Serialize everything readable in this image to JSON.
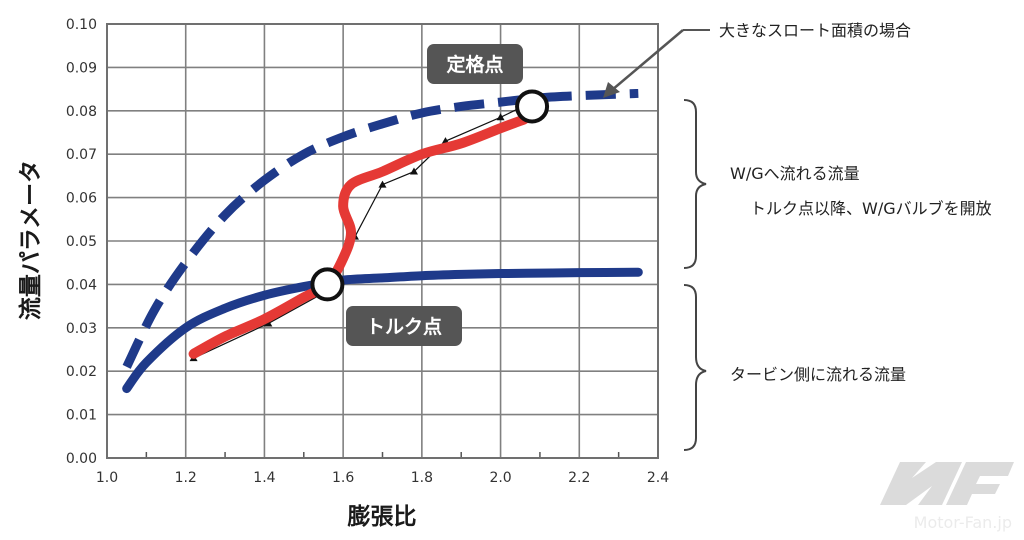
{
  "chart_data": {
    "type": "line",
    "xlabel": "膨張比",
    "ylabel": "流量パラメータ",
    "xlim": [
      1.0,
      2.4
    ],
    "ylim": [
      0.0,
      0.1
    ],
    "x_ticks": [
      "1.0",
      "1.2",
      "1.4",
      "1.6",
      "1.8",
      "2.0",
      "2.2",
      "2.4"
    ],
    "y_ticks": [
      "0.00",
      "0.01",
      "0.02",
      "0.03",
      "0.04",
      "0.05",
      "0.06",
      "0.07",
      "0.08",
      "0.09",
      "0.10"
    ],
    "grid": true,
    "series": [
      {
        "style": "dashed",
        "color": "#1f3a8a",
        "x": [
          1.05,
          1.12,
          1.2,
          1.3,
          1.4,
          1.5,
          1.6,
          1.7,
          1.8,
          1.9,
          2.0,
          2.1,
          2.2,
          2.35
        ],
        "y": [
          0.021,
          0.034,
          0.045,
          0.056,
          0.064,
          0.07,
          0.074,
          0.077,
          0.0795,
          0.081,
          0.082,
          0.083,
          0.0835,
          0.084
        ]
      },
      {
        "style": "solid",
        "color": "#1f3a8a",
        "x": [
          1.05,
          1.1,
          1.2,
          1.3,
          1.4,
          1.5,
          1.6,
          1.7,
          1.8,
          1.9,
          2.0,
          2.1,
          2.2,
          2.35
        ],
        "y": [
          0.016,
          0.022,
          0.03,
          0.0345,
          0.0375,
          0.0395,
          0.041,
          0.0415,
          0.042,
          0.0423,
          0.0425,
          0.0426,
          0.0427,
          0.0428
        ]
      },
      {
        "style": "solid",
        "color": "#e53935",
        "x": [
          1.22,
          1.3,
          1.4,
          1.5,
          1.56,
          1.6,
          1.62,
          1.6,
          1.62,
          1.7,
          1.8,
          1.9,
          2.0,
          2.06
        ],
        "y": [
          0.024,
          0.028,
          0.032,
          0.037,
          0.04,
          0.046,
          0.052,
          0.058,
          0.063,
          0.066,
          0.07,
          0.0725,
          0.076,
          0.078
        ]
      },
      {
        "style": "solid-markers",
        "color": "#111111",
        "x": [
          1.22,
          1.41,
          1.55,
          1.63,
          1.7,
          1.78,
          1.86,
          2.0,
          2.08
        ],
        "y": [
          0.023,
          0.031,
          0.038,
          0.051,
          0.063,
          0.066,
          0.073,
          0.0785,
          0.082
        ]
      }
    ],
    "points": {
      "rated": {
        "x": 2.08,
        "y": 0.081,
        "label": "定格点"
      },
      "torque": {
        "x": 1.56,
        "y": 0.04,
        "label": "トルク点"
      }
    },
    "annotations": {
      "large_throat": "大きなスロート面積の場合",
      "wg_flow": "W/Gへ流れる流量",
      "wg_open": "トルク点以降、W/Gバルブを開放",
      "turbine_flow": "タービン側に流れる流量"
    }
  },
  "colors": {
    "navy": "#1f3a8a",
    "red": "#e53935",
    "badge": "#555555",
    "grid": "#808080"
  },
  "watermark": {
    "logo_text": "Motor-Fan.jp"
  }
}
